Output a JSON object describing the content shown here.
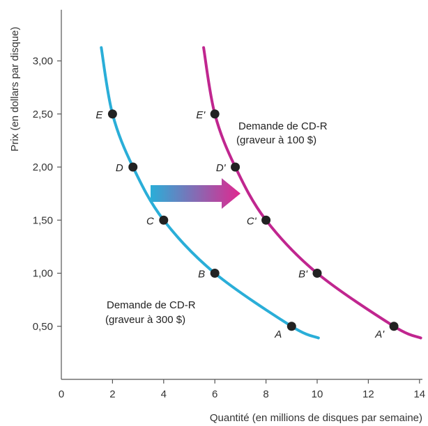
{
  "chart_data": {
    "type": "line",
    "xlabel": "Quantité (en millions de disques par semaine)",
    "ylabel": "Prix (en dollars par disque)",
    "xlim": [
      0,
      14
    ],
    "ylim": [
      0,
      3.4
    ],
    "x_ticks": [
      0,
      2,
      4,
      6,
      8,
      10,
      12,
      14
    ],
    "x_tick_labels": [
      "0",
      "2",
      "4",
      "6",
      "8",
      "10",
      "12",
      "14"
    ],
    "y_ticks": [
      0.5,
      1.0,
      1.5,
      2.0,
      2.5,
      3.0
    ],
    "y_tick_labels": [
      "0,50",
      "1,00",
      "1,50",
      "2,00",
      "2,50",
      "3,00"
    ],
    "grid": false,
    "series": [
      {
        "name": "Demande de CD-R (graveur à 300 $)",
        "color": "#2aaed8",
        "points": [
          {
            "label": "E",
            "x": 2,
            "y": 2.5
          },
          {
            "label": "D",
            "x": 2.8,
            "y": 2.0
          },
          {
            "label": "C",
            "x": 4,
            "y": 1.5
          },
          {
            "label": "B",
            "x": 6,
            "y": 1.0
          },
          {
            "label": "A",
            "x": 9,
            "y": 0.5
          }
        ]
      },
      {
        "name": "Demande de CD-R (graveur à 100 $)",
        "color": "#c0268f",
        "points": [
          {
            "label": "E'",
            "x": 6,
            "y": 2.5
          },
          {
            "label": "D'",
            "x": 6.8,
            "y": 2.0
          },
          {
            "label": "C'",
            "x": 8,
            "y": 1.5
          },
          {
            "label": "B'",
            "x": 10,
            "y": 1.0
          },
          {
            "label": "A'",
            "x": 13,
            "y": 0.5
          }
        ]
      }
    ],
    "annotations": {
      "curve1_line1": "Demande de CD-R",
      "curve1_line2": "(graveur à 300 $)",
      "curve2_line1": "Demande de CD-R",
      "curve2_line2": "(graveur à 100 $)"
    }
  }
}
